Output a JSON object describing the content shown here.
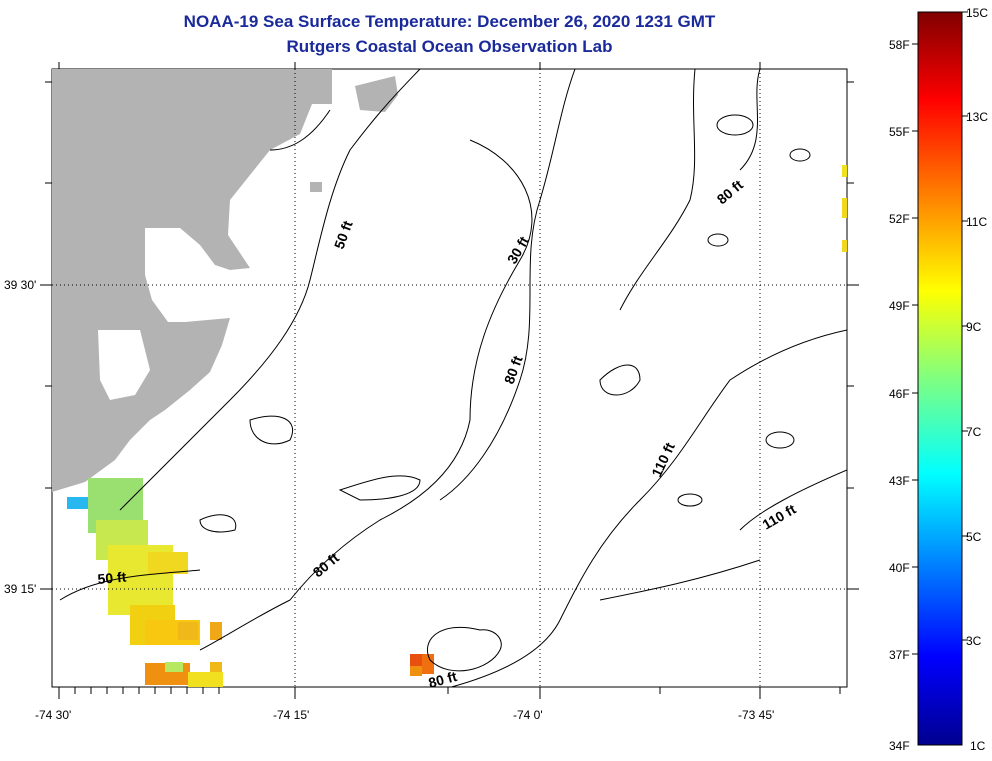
{
  "title": "NOAA-19 Sea Surface Temperature:  December 26, 2020 1231 GMT",
  "subtitle": "Rutgers Coastal Ocean Observation Lab",
  "map": {
    "lon_ticks": [
      "-74 30'",
      "-74 15'",
      "-74 0'",
      "-73 45'"
    ],
    "lat_ticks": [
      "39 30'",
      "39 15'"
    ],
    "contour_labels": [
      {
        "text": "50 ft",
        "rot": -70
      },
      {
        "text": "30 ft",
        "rot": -60
      },
      {
        "text": "80 ft",
        "rot": -40
      },
      {
        "text": "80 ft",
        "rot": -70
      },
      {
        "text": "110 ft",
        "rot": -65
      },
      {
        "text": "110 ft",
        "rot": -30
      },
      {
        "text": "50 ft",
        "rot": -5
      },
      {
        "text": "80 ft",
        "rot": -40
      },
      {
        "text": "80 ft",
        "rot": -15
      }
    ],
    "land_color": "#b3b3b3"
  },
  "colorbar": {
    "celsius": [
      "15C",
      "13C",
      "11C",
      "9C",
      "7C",
      "5C",
      "3C",
      "1C"
    ],
    "fahrenheit": [
      "58F",
      "55F",
      "52F",
      "49F",
      "46F",
      "43F",
      "40F",
      "37F",
      "34F"
    ],
    "stops": [
      "#00008f",
      "#0000ff",
      "#0080ff",
      "#00ffff",
      "#80ff80",
      "#ffff00",
      "#ff8000",
      "#ff0000",
      "#800000"
    ]
  }
}
